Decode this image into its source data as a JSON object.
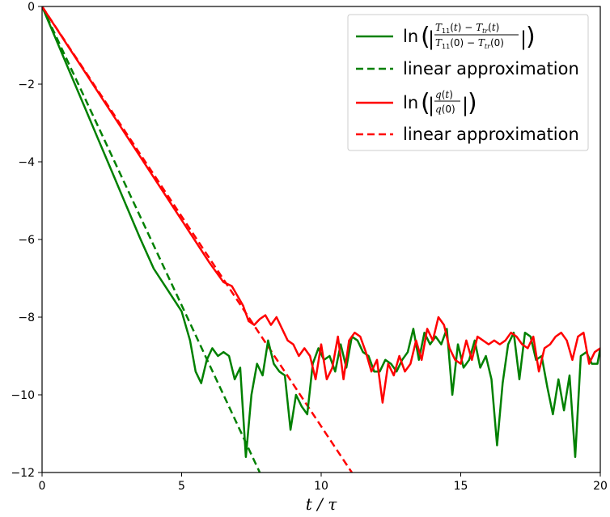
{
  "chart_data": {
    "type": "line",
    "xlabel": "t / τ",
    "xlim": [
      0,
      20
    ],
    "ylim": [
      -12,
      0
    ],
    "x_ticks": [
      "0",
      "5",
      "10",
      "15",
      "20"
    ],
    "y_ticks": [
      "0",
      "−2",
      "−4",
      "−6",
      "−8",
      "−10",
      "−12"
    ],
    "legend_position": "top-right",
    "series": [
      {
        "name": "ln(|(T11(t) − Ttr(t)) / (T11(0) − Ttr(0))|)",
        "color": "#008000",
        "style": "solid",
        "x": [
          0,
          0.5,
          1,
          1.5,
          2,
          2.5,
          3,
          3.5,
          4,
          4.5,
          5,
          5.3,
          5.5,
          5.7,
          5.9,
          6.1,
          6.3,
          6.5,
          6.7,
          6.9,
          7.1,
          7.3,
          7.5,
          7.7,
          7.9,
          8.1,
          8.3,
          8.5,
          8.7,
          8.9,
          9.1,
          9.3,
          9.5,
          9.7,
          9.9,
          10.1,
          10.3,
          10.5,
          10.7,
          10.9,
          11.1,
          11.3,
          11.5,
          11.7,
          11.9,
          12.1,
          12.3,
          12.5,
          12.7,
          12.9,
          13.1,
          13.3,
          13.5,
          13.7,
          13.9,
          14.1,
          14.3,
          14.5,
          14.7,
          14.9,
          15.1,
          15.3,
          15.5,
          15.7,
          15.9,
          16.1,
          16.3,
          16.5,
          16.7,
          16.9,
          17.1,
          17.3,
          17.5,
          17.7,
          17.9,
          18.1,
          18.3,
          18.5,
          18.7,
          18.9,
          19.1,
          19.3,
          19.5,
          19.7,
          19.9,
          20
        ],
        "values": [
          0,
          -0.85,
          -1.7,
          -2.55,
          -3.4,
          -4.25,
          -5.1,
          -5.95,
          -6.75,
          -7.3,
          -7.85,
          -8.6,
          -9.4,
          -9.7,
          -9.1,
          -8.8,
          -9.0,
          -8.9,
          -9.0,
          -9.6,
          -9.3,
          -11.6,
          -10.0,
          -9.2,
          -9.5,
          -8.6,
          -9.2,
          -9.4,
          -9.5,
          -10.9,
          -10.0,
          -10.3,
          -10.5,
          -9.2,
          -8.8,
          -9.1,
          -9.0,
          -9.4,
          -8.7,
          -9.3,
          -8.5,
          -8.6,
          -8.9,
          -9.0,
          -9.4,
          -9.4,
          -9.1,
          -9.2,
          -9.4,
          -9.1,
          -8.9,
          -8.3,
          -9.1,
          -8.4,
          -8.7,
          -8.5,
          -8.7,
          -8.3,
          -10.0,
          -8.7,
          -9.3,
          -9.1,
          -8.6,
          -9.3,
          -9.0,
          -9.6,
          -11.3,
          -9.7,
          -8.7,
          -8.4,
          -9.6,
          -8.4,
          -8.5,
          -9.1,
          -9.0,
          -9.8,
          -10.5,
          -9.6,
          -10.4,
          -9.5,
          -11.6,
          -9.0,
          -8.9,
          -9.2,
          -9.2,
          -8.8
        ],
        "linear_approximation": {
          "name": "linear approximation",
          "color": "#008000",
          "style": "dashed",
          "x": [
            0,
            7.8
          ],
          "values": [
            0,
            -12
          ]
        }
      },
      {
        "name": "ln(|q(t) / q(0)|)",
        "color": "#ff0000",
        "style": "solid",
        "x": [
          0,
          0.5,
          1,
          1.5,
          2,
          2.5,
          3,
          3.5,
          4,
          4.5,
          5,
          5.5,
          6,
          6.5,
          6.8,
          7.0,
          7.2,
          7.4,
          7.6,
          7.8,
          8.0,
          8.2,
          8.4,
          8.6,
          8.8,
          9.0,
          9.2,
          9.4,
          9.6,
          9.8,
          10.0,
          10.2,
          10.4,
          10.6,
          10.8,
          11.0,
          11.2,
          11.4,
          11.6,
          11.8,
          12.0,
          12.2,
          12.4,
          12.6,
          12.8,
          13.0,
          13.2,
          13.4,
          13.6,
          13.8,
          14.0,
          14.2,
          14.4,
          14.6,
          14.8,
          15.0,
          15.2,
          15.4,
          15.6,
          15.8,
          16.0,
          16.2,
          16.4,
          16.6,
          16.8,
          17.0,
          17.2,
          17.4,
          17.6,
          17.8,
          18.0,
          18.2,
          18.4,
          18.6,
          18.8,
          19.0,
          19.2,
          19.4,
          19.6,
          19.8,
          20
        ],
        "values": [
          0,
          -0.55,
          -1.1,
          -1.65,
          -2.2,
          -2.75,
          -3.3,
          -3.85,
          -4.4,
          -4.95,
          -5.5,
          -6.05,
          -6.6,
          -7.1,
          -7.2,
          -7.45,
          -7.7,
          -8.1,
          -8.2,
          -8.05,
          -7.95,
          -8.2,
          -8.0,
          -8.3,
          -8.6,
          -8.7,
          -9.0,
          -8.8,
          -9.0,
          -9.6,
          -8.7,
          -9.6,
          -9.3,
          -8.5,
          -9.6,
          -8.6,
          -8.4,
          -8.5,
          -8.9,
          -9.4,
          -9.1,
          -10.2,
          -9.2,
          -9.5,
          -9.0,
          -9.4,
          -9.2,
          -8.6,
          -9.1,
          -8.3,
          -8.6,
          -8.0,
          -8.2,
          -8.8,
          -9.1,
          -9.2,
          -8.6,
          -9.1,
          -8.5,
          -8.6,
          -8.7,
          -8.6,
          -8.7,
          -8.6,
          -8.4,
          -8.5,
          -8.7,
          -8.8,
          -8.5,
          -9.4,
          -8.8,
          -8.7,
          -8.5,
          -8.4,
          -8.6,
          -9.1,
          -8.5,
          -8.4,
          -9.2,
          -8.9,
          -8.8
        ],
        "linear_approximation": {
          "name": "linear approximation",
          "color": "#ff0000",
          "style": "dashed",
          "x": [
            0,
            11.1
          ],
          "values": [
            0,
            -12
          ]
        }
      }
    ]
  }
}
